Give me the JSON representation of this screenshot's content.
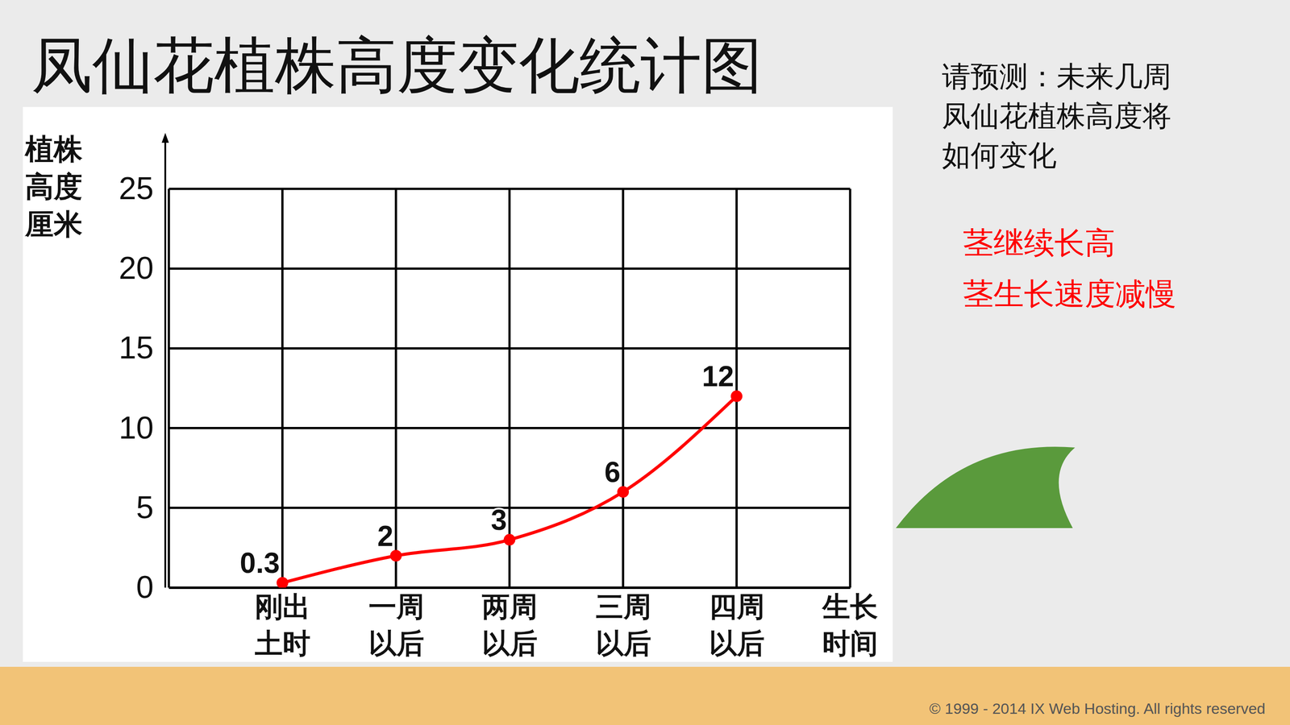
{
  "chart_data": {
    "type": "line",
    "title": "凤仙花植株高度变化统计图",
    "x_label": "生长时间",
    "y_label": "植株高度厘米",
    "categories": [
      null,
      "刚出土时",
      "一周以后",
      "两周以后",
      "三周以后",
      "四周以后",
      null
    ],
    "values": [
      null,
      0.3,
      2,
      3,
      6,
      12,
      null
    ],
    "color": "#ff0000",
    "marker": "circle",
    "line_style": "solid",
    "ylim": [
      0,
      25
    ],
    "yticks": [
      0,
      5,
      10,
      15,
      20,
      25
    ],
    "grid": true,
    "data_labels": true,
    "annotations": [
      {
        "text": "请预测：未来几周凤仙花植株高度将如何变化",
        "color": "#111111"
      },
      {
        "text": "茎继续长高",
        "color": "#ff0000"
      },
      {
        "text": "茎生长速度减慢",
        "color": "#ff0000"
      },
      {
        "text": "© 1999 - 2014 IX Web Hosting. All rights reserved",
        "color": "#555555"
      }
    ]
  }
}
